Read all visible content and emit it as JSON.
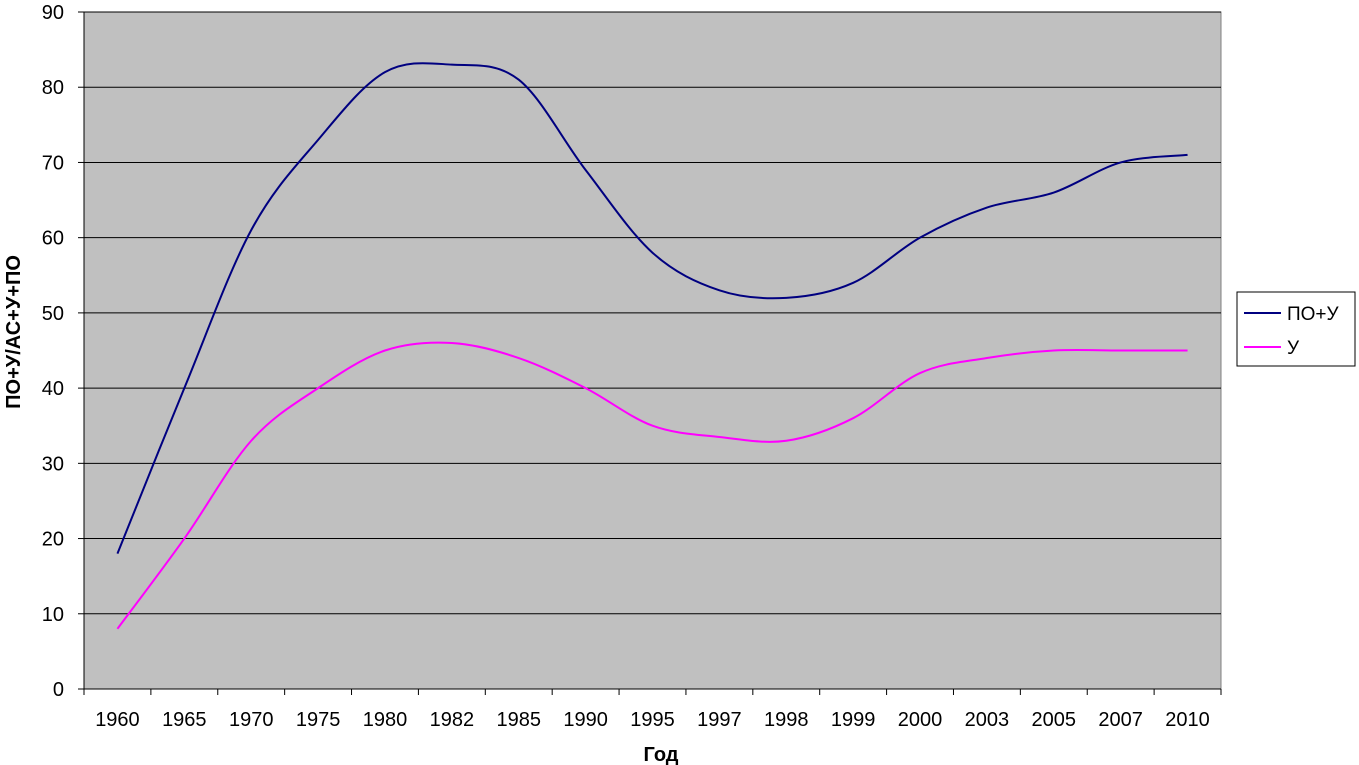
{
  "chart_data": {
    "type": "line",
    "title": "",
    "xlabel": "Год",
    "ylabel": "ПО+У/АС+У+ПО",
    "ylim": [
      0,
      90
    ],
    "yticks": [
      "0",
      "10",
      "20",
      "30",
      "40",
      "50",
      "60",
      "70",
      "80",
      "90"
    ],
    "categories": [
      "1960",
      "1965",
      "1970",
      "1975",
      "1980",
      "1982",
      "1985",
      "1990",
      "1995",
      "1997",
      "1998",
      "1999",
      "2000",
      "2003",
      "2005",
      "2007",
      "2010"
    ],
    "grid": true,
    "plot_background": "#c0c0c0",
    "legend_position": "right",
    "series": [
      {
        "name": "ПО+У",
        "color": "#000080",
        "values": [
          18,
          40,
          61,
          73,
          82,
          83,
          81,
          69,
          58,
          53,
          52,
          54,
          60,
          64,
          66,
          70,
          71
        ]
      },
      {
        "name": "У",
        "color": "#ff00ff",
        "values": [
          8,
          20,
          33,
          40,
          45,
          46,
          44,
          40,
          35,
          33.5,
          33,
          36,
          42,
          44,
          45,
          45,
          45
        ]
      }
    ]
  }
}
